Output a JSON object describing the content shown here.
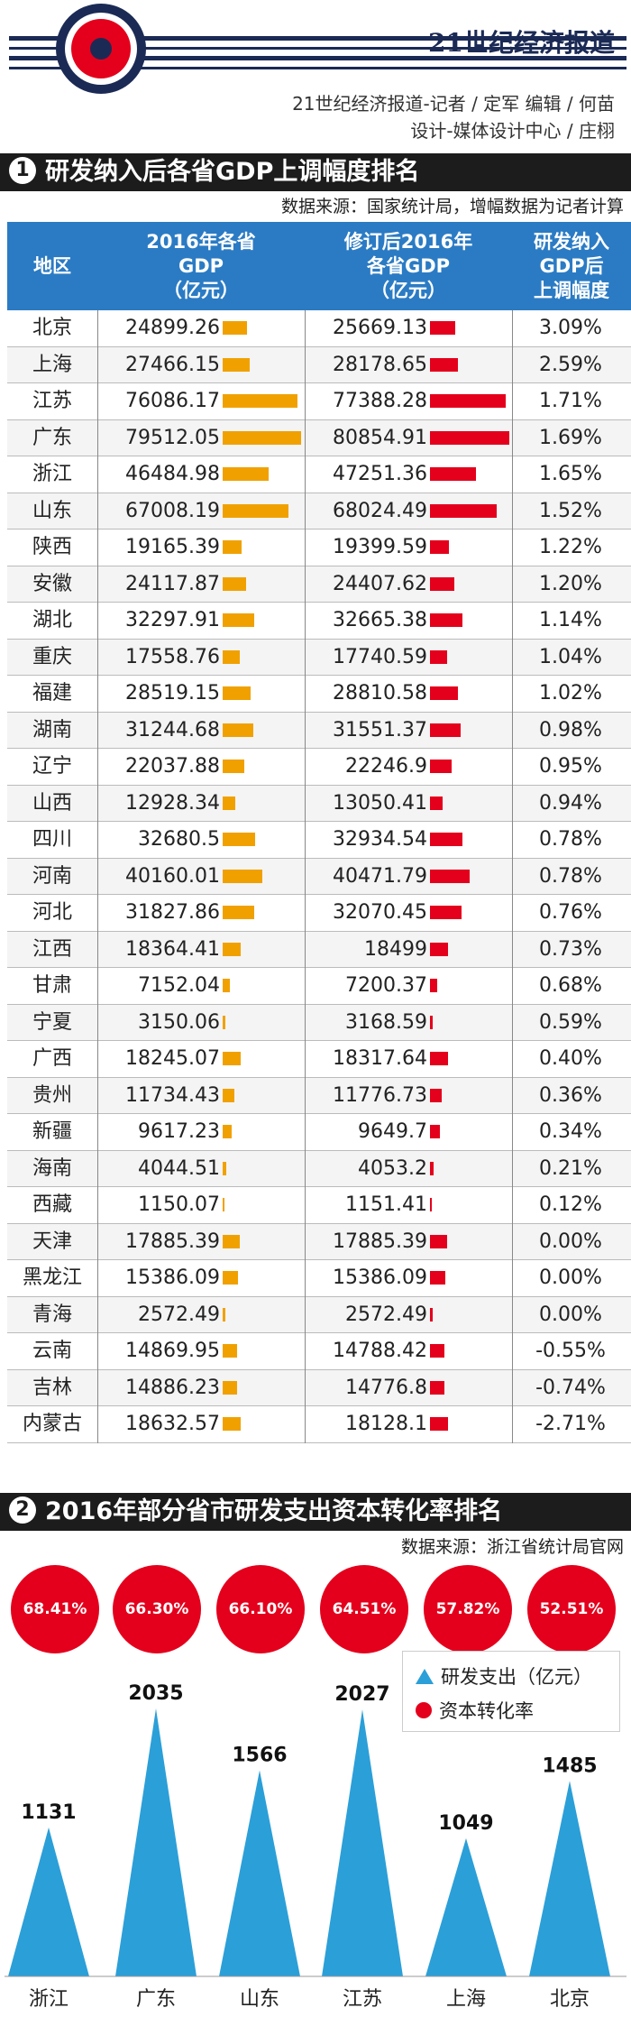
{
  "header": {
    "brand": "21世纪经济报道",
    "credit_line1": "21世纪经济报道-记者 / 定军   编辑 / 何苗",
    "credit_line2": "设计-媒体设计中心 / 庄栩"
  },
  "colors": {
    "orange_bar": "#f0a100",
    "red_bar": "#e4001c",
    "table_header": "#2b7bc4",
    "triangle": "#2b9fd8"
  },
  "section1": {
    "number": "1",
    "title": "研发纳入后各省GDP上调幅度排名",
    "source": "数据来源：国家统计局，增幅数据为记者计算",
    "headers": {
      "region": "地区",
      "gdp_2016": "2016年各省\nGDP\n（亿元）",
      "gdp_revised": "修订后2016年\n各省GDP\n（亿元）",
      "adjust": "研发纳入\nGDP后\n上调幅度"
    }
  },
  "chart_data": [
    {
      "type": "table",
      "columns": [
        "地区",
        "2016年各省GDP（亿元）",
        "修订后2016年各省GDP（亿元）",
        "研发纳入GDP后上调幅度"
      ],
      "rows": [
        [
          "北京",
          "24899.26",
          "25669.13",
          "3.09%"
        ],
        [
          "上海",
          "27466.15",
          "28178.65",
          "2.59%"
        ],
        [
          "江苏",
          "76086.17",
          "77388.28",
          "1.71%"
        ],
        [
          "广东",
          "79512.05",
          "80854.91",
          "1.69%"
        ],
        [
          "浙江",
          "46484.98",
          "47251.36",
          "1.65%"
        ],
        [
          "山东",
          "67008.19",
          "68024.49",
          "1.52%"
        ],
        [
          "陕西",
          "19165.39",
          "19399.59",
          "1.22%"
        ],
        [
          "安徽",
          "24117.87",
          "24407.62",
          "1.20%"
        ],
        [
          "湖北",
          "32297.91",
          "32665.38",
          "1.14%"
        ],
        [
          "重庆",
          "17558.76",
          "17740.59",
          "1.04%"
        ],
        [
          "福建",
          "28519.15",
          "28810.58",
          "1.02%"
        ],
        [
          "湖南",
          "31244.68",
          "31551.37",
          "0.98%"
        ],
        [
          "辽宁",
          "22037.88",
          "22246.9",
          "0.95%"
        ],
        [
          "山西",
          "12928.34",
          "13050.41",
          "0.94%"
        ],
        [
          "四川",
          "32680.5",
          "32934.54",
          "0.78%"
        ],
        [
          "河南",
          "40160.01",
          "40471.79",
          "0.78%"
        ],
        [
          "河北",
          "31827.86",
          "32070.45",
          "0.76%"
        ],
        [
          "江西",
          "18364.41",
          "18499",
          "0.73%"
        ],
        [
          "甘肃",
          "7152.04",
          "7200.37",
          "0.68%"
        ],
        [
          "宁夏",
          "3150.06",
          "3168.59",
          "0.59%"
        ],
        [
          "广西",
          "18245.07",
          "18317.64",
          "0.40%"
        ],
        [
          "贵州",
          "11734.43",
          "11776.73",
          "0.36%"
        ],
        [
          "新疆",
          "9617.23",
          "9649.7",
          "0.34%"
        ],
        [
          "海南",
          "4044.51",
          "4053.2",
          "0.21%"
        ],
        [
          "西藏",
          "1150.07",
          "1151.41",
          "0.12%"
        ],
        [
          "天津",
          "17885.39",
          "17885.39",
          "0.00%"
        ],
        [
          "黑龙江",
          "15386.09",
          "15386.09",
          "0.00%"
        ],
        [
          "青海",
          "2572.49",
          "2572.49",
          "0.00%"
        ],
        [
          "云南",
          "14869.95",
          "14788.42",
          "-0.55%"
        ],
        [
          "吉林",
          "14886.23",
          "14776.8",
          "-0.74%"
        ],
        [
          "内蒙古",
          "18632.57",
          "18128.1",
          "-2.71%"
        ]
      ]
    },
    {
      "type": "bar",
      "title": "2016年部分省市研发支出资本转化率排名",
      "categories": [
        "浙江",
        "广东",
        "山东",
        "江苏",
        "上海",
        "北京"
      ],
      "series": [
        {
          "name": "研发支出（亿元）",
          "marker": "triangle",
          "values": [
            1131,
            2035,
            1566,
            2027,
            1049,
            1485
          ]
        },
        {
          "name": "资本转化率",
          "marker": "circle",
          "values": [
            "68.41%",
            "66.30%",
            "66.10%",
            "64.51%",
            "57.82%",
            "52.51%"
          ]
        }
      ],
      "circle_order": [
        "68.41%",
        "66.30%",
        "66.10%",
        "64.51%",
        "57.82%",
        "52.51%"
      ],
      "ylim": [
        0,
        2100
      ]
    }
  ],
  "section2": {
    "number": "2",
    "title": "2016年部分省市研发支出资本转化率排名",
    "source": "数据来源：浙江省统计局官网",
    "legend": {
      "triangle_label": "研发支出（亿元）",
      "circle_label": "资本转化率"
    }
  }
}
